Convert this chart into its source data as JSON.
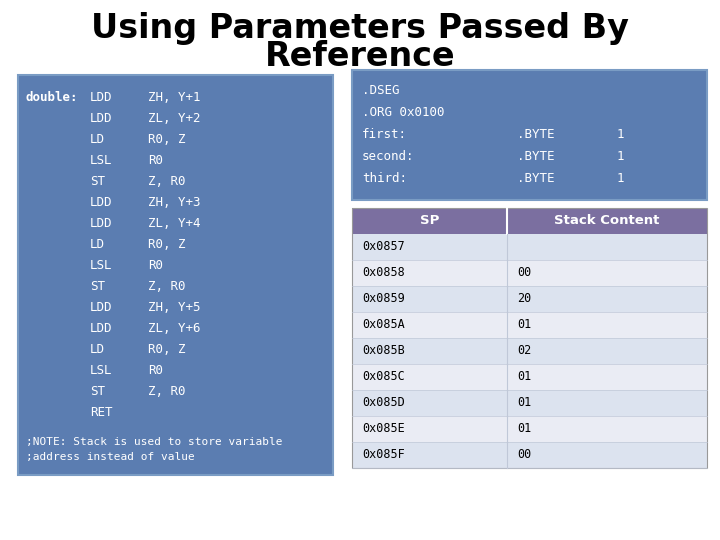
{
  "title_line1": "Using Parameters Passed By",
  "title_line2": "Reference",
  "title_fontsize": 24,
  "bg_color": "#ffffff",
  "blue_bg": "#5b7db1",
  "purple_header": "#7b6fa0",
  "table_light": "#dce3ef",
  "table_lighter": "#eaecf4",
  "code_left": [
    [
      "double:",
      "LDD",
      "ZH, Y+1"
    ],
    [
      "",
      "LDD",
      "ZL, Y+2"
    ],
    [
      "",
      "LD",
      "R0, Z"
    ],
    [
      "",
      "LSL",
      "R0"
    ],
    [
      "",
      "ST",
      "Z, R0"
    ],
    [
      "",
      "LDD",
      "ZH, Y+3"
    ],
    [
      "",
      "LDD",
      "ZL, Y+4"
    ],
    [
      "",
      "LD",
      "R0, Z"
    ],
    [
      "",
      "LSL",
      "R0"
    ],
    [
      "",
      "ST",
      "Z, R0"
    ],
    [
      "",
      "LDD",
      "ZH, Y+5"
    ],
    [
      "",
      "LDD",
      "ZL, Y+6"
    ],
    [
      "",
      "LD",
      "R0, Z"
    ],
    [
      "",
      "LSL",
      "R0"
    ],
    [
      "",
      "ST",
      "Z, R0"
    ],
    [
      "",
      "RET",
      ""
    ]
  ],
  "note": ";NOTE: Stack is used to store variable\n;address instead of value",
  "dseg_lines": [
    [
      ".DSEG",
      "",
      ""
    ],
    [
      ".ORG 0x0100",
      "",
      ""
    ],
    [
      "first:",
      ".BYTE",
      "1"
    ],
    [
      "second:",
      ".BYTE",
      "1"
    ],
    [
      "third:",
      ".BYTE",
      "1"
    ]
  ],
  "table_headers": [
    "SP",
    "Stack Content"
  ],
  "table_rows": [
    [
      "0x0857",
      ""
    ],
    [
      "0x0858",
      "00"
    ],
    [
      "0x0859",
      "20"
    ],
    [
      "0x085A",
      "01"
    ],
    [
      "0x085B",
      "02"
    ],
    [
      "0x085C",
      "01"
    ],
    [
      "0x085D",
      "01"
    ],
    [
      "0x085E",
      "01"
    ],
    [
      "0x085F",
      "00"
    ]
  ]
}
